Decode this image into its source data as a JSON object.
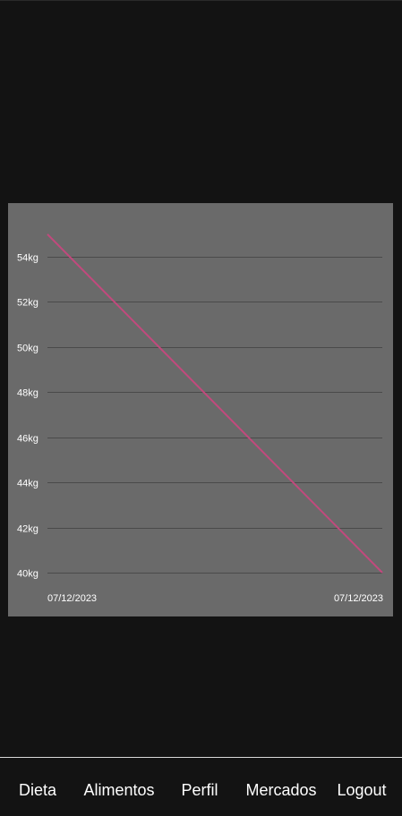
{
  "colors": {
    "background": "#131313",
    "chart_background": "#6a6a6a",
    "gridline": "#4a4a4a",
    "series_line": "#c2497d",
    "nav_text": "#ffffff"
  },
  "chart_data": {
    "type": "line",
    "title": "",
    "xlabel": "",
    "ylabel": "",
    "x": [
      "07/12/2023",
      "07/12/2023"
    ],
    "series": [
      {
        "values": [
          55,
          40
        ]
      }
    ],
    "ylim": [
      40,
      55
    ],
    "y_ticks": [
      "54kg",
      "52kg",
      "50kg",
      "48kg",
      "46kg",
      "44kg",
      "42kg",
      "40kg"
    ],
    "y_tick_values": [
      54,
      52,
      50,
      48,
      46,
      44,
      42,
      40
    ],
    "x_tick_labels": [
      "07/12/2023",
      "07/12/2023"
    ],
    "grid": true,
    "legend": "none"
  },
  "bottom_nav": {
    "items": [
      {
        "label": "Dieta"
      },
      {
        "label": "Alimentos"
      },
      {
        "label": "Perfil"
      },
      {
        "label": "Mercados"
      },
      {
        "label": "Logout"
      }
    ]
  }
}
